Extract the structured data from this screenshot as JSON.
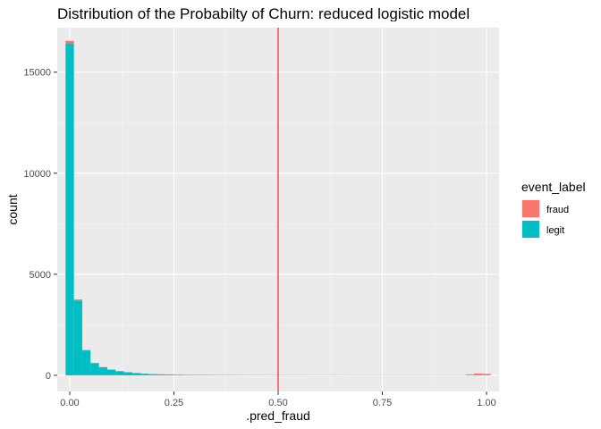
{
  "chart_data": {
    "type": "bar",
    "subtype": "stacked-histogram",
    "title": "Distribution of the Probabilty of Churn: reduced logistic model",
    "xlabel": ".pred_fraud",
    "ylabel": "count",
    "xlim": [
      -0.03,
      1.03
    ],
    "ylim": [
      -800,
      17200
    ],
    "x_ticks": [
      {
        "value": 0,
        "label": "0.00"
      },
      {
        "value": 0.25,
        "label": "0.25"
      },
      {
        "value": 0.5,
        "label": "0.50"
      },
      {
        "value": 0.75,
        "label": "0.75"
      },
      {
        "value": 1,
        "label": "1.00"
      }
    ],
    "y_ticks": [
      {
        "value": 0,
        "label": "0"
      },
      {
        "value": 5000,
        "label": "5000"
      },
      {
        "value": 10000,
        "label": "10000"
      },
      {
        "value": 15000,
        "label": "15000"
      }
    ],
    "grid": true,
    "bin_width": 0.02,
    "bin_centers": [
      0.0,
      0.02,
      0.04,
      0.06,
      0.08,
      0.1,
      0.12,
      0.14,
      0.16,
      0.18,
      0.2,
      0.22,
      0.24,
      0.26,
      0.28,
      0.3,
      0.32,
      0.34,
      0.36,
      0.38,
      0.4,
      0.42,
      0.44,
      0.46,
      0.48,
      0.5,
      0.52,
      0.54,
      0.56,
      0.58,
      0.6,
      0.62,
      0.64,
      0.66,
      0.68,
      0.7,
      0.72,
      0.74,
      0.76,
      0.78,
      0.8,
      0.82,
      0.84,
      0.86,
      0.88,
      0.9,
      0.92,
      0.94,
      0.96,
      0.98,
      1.0
    ],
    "series": [
      {
        "name": "legit",
        "color": "#00BFC4",
        "values": [
          16420,
          3700,
          1230,
          600,
          400,
          280,
          200,
          150,
          110,
          80,
          60,
          50,
          40,
          30,
          25,
          22,
          20,
          18,
          16,
          15,
          14,
          13,
          12,
          12,
          11,
          11,
          10,
          10,
          10,
          9,
          9,
          9,
          9,
          9,
          8,
          8,
          8,
          8,
          8,
          8,
          8,
          8,
          8,
          8,
          8,
          8,
          8,
          8,
          15,
          20,
          15
        ]
      },
      {
        "name": "fraud",
        "color": "#F8766D",
        "values": [
          130,
          50,
          20,
          10,
          8,
          6,
          5,
          4,
          3,
          3,
          3,
          3,
          3,
          3,
          2,
          2,
          2,
          2,
          2,
          2,
          2,
          2,
          2,
          2,
          2,
          2,
          2,
          2,
          2,
          2,
          2,
          2,
          2,
          2,
          2,
          2,
          2,
          2,
          2,
          2,
          2,
          2,
          2,
          2,
          2,
          2,
          2,
          2,
          30,
          70,
          60
        ]
      }
    ],
    "vline": {
      "x": 0.5,
      "color": "#FF3030"
    },
    "legend": {
      "title": "event_label",
      "position": "right",
      "items": [
        {
          "label": "fraud",
          "color": "#F8766D"
        },
        {
          "label": "legit",
          "color": "#00BFC4"
        }
      ]
    }
  }
}
